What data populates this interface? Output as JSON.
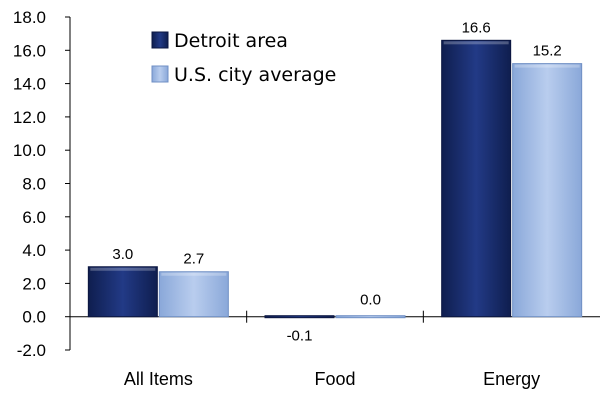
{
  "chart_data": {
    "type": "bar",
    "title": "",
    "xlabel": "",
    "ylabel": "",
    "categories": [
      "All Items",
      "Food",
      "Energy"
    ],
    "series": [
      {
        "name": "Detroit area",
        "values": [
          3.0,
          -0.1,
          16.6
        ],
        "labels": [
          "3.0",
          "-0.1",
          "16.6"
        ],
        "color": "#1b2f6e"
      },
      {
        "name": "U.S. city average",
        "values": [
          2.7,
          0.0,
          15.2
        ],
        "labels": [
          "2.7",
          "0.0",
          "15.2"
        ],
        "color": "#9db8e4"
      }
    ],
    "ylim": [
      -2.0,
      18.0
    ],
    "yticks": [
      "18.0",
      "16.0",
      "14.0",
      "12.0",
      "10.0",
      "8.0",
      "6.0",
      "4.0",
      "2.0",
      "0.0",
      "-2.0"
    ],
    "grid": false,
    "legend_position": "top-left"
  }
}
